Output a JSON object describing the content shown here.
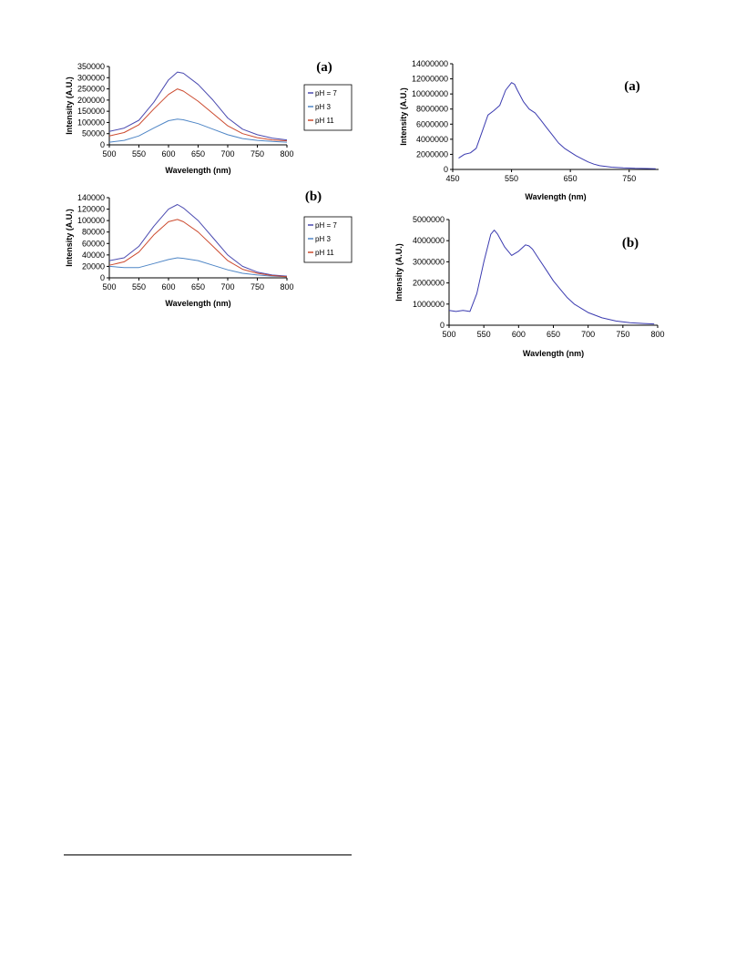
{
  "chart_data": [
    {
      "type": "line",
      "panel_label": "(a)",
      "xlabel": "Wavelength (nm)",
      "ylabel": "Intensity (A.U.)",
      "xlim": [
        500,
        800
      ],
      "ylim": [
        0,
        350000
      ],
      "xticks": [
        "500",
        "550",
        "600",
        "650",
        "700",
        "750",
        "800"
      ],
      "yticks": [
        "0",
        "50000",
        "100000",
        "150000",
        "200000",
        "250000",
        "300000",
        "350000"
      ],
      "legend_position": "right",
      "x": [
        500,
        525,
        550,
        575,
        600,
        615,
        625,
        650,
        675,
        700,
        725,
        750,
        775,
        800
      ],
      "series": [
        {
          "name": "pH = 7",
          "color": "#4a4ab0",
          "values": [
            60000,
            75000,
            110000,
            190000,
            290000,
            325000,
            320000,
            270000,
            200000,
            120000,
            70000,
            45000,
            30000,
            22000
          ]
        },
        {
          "name": "pH 3",
          "color": "#4f86c6",
          "values": [
            12000,
            20000,
            40000,
            75000,
            108000,
            115000,
            112000,
            95000,
            70000,
            45000,
            28000,
            20000,
            15000,
            12000
          ]
        },
        {
          "name": "pH 11",
          "color": "#cc4a2e",
          "values": [
            40000,
            55000,
            90000,
            160000,
            225000,
            250000,
            240000,
            195000,
            140000,
            85000,
            50000,
            32000,
            22000,
            18000
          ]
        }
      ]
    },
    {
      "type": "line",
      "panel_label": "(b)",
      "xlabel": "Wavelength (nm)",
      "ylabel": "Intensity (A.U.)",
      "xlim": [
        500,
        800
      ],
      "ylim": [
        0,
        140000
      ],
      "xticks": [
        "500",
        "550",
        "600",
        "650",
        "700",
        "750",
        "800"
      ],
      "yticks": [
        "0",
        "20000",
        "40000",
        "60000",
        "80000",
        "100000",
        "120000",
        "140000"
      ],
      "legend_position": "right",
      "x": [
        500,
        525,
        550,
        575,
        600,
        615,
        625,
        650,
        675,
        700,
        725,
        750,
        775,
        800
      ],
      "series": [
        {
          "name": "pH = 7",
          "color": "#4a4ab0",
          "values": [
            30000,
            35000,
            55000,
            90000,
            120000,
            128000,
            122000,
            100000,
            70000,
            40000,
            20000,
            10000,
            5000,
            3000
          ]
        },
        {
          "name": "pH 3",
          "color": "#4f86c6",
          "values": [
            20000,
            18000,
            18000,
            25000,
            32000,
            35000,
            34000,
            30000,
            22000,
            14000,
            8000,
            5000,
            3000,
            2000
          ]
        },
        {
          "name": "pH 11",
          "color": "#cc4a2e",
          "values": [
            22000,
            28000,
            45000,
            75000,
            98000,
            102000,
            98000,
            80000,
            55000,
            30000,
            15000,
            8000,
            4000,
            2000
          ]
        }
      ]
    },
    {
      "type": "line",
      "panel_label": "(a)",
      "xlabel": "Wavlength (nm)",
      "ylabel": "Intensity (A.U.)",
      "xlim": [
        450,
        800
      ],
      "ylim": [
        0,
        14000000
      ],
      "xticks": [
        "450",
        "550",
        "650",
        "750"
      ],
      "xtick_values": [
        450,
        550,
        650,
        750
      ],
      "yticks": [
        "0",
        "2000000",
        "4000000",
        "6000000",
        "8000000",
        "10000000",
        "12000000",
        "14000000"
      ],
      "x": [
        460,
        470,
        480,
        490,
        500,
        510,
        520,
        530,
        540,
        550,
        555,
        560,
        570,
        580,
        590,
        600,
        610,
        620,
        630,
        640,
        650,
        660,
        670,
        680,
        690,
        700,
        720,
        740,
        760,
        780,
        795
      ],
      "series": [
        {
          "name": "",
          "color": "#3b3bb0",
          "values": [
            1500000,
            2000000,
            2200000,
            2800000,
            5000000,
            7200000,
            7800000,
            8500000,
            10500000,
            11500000,
            11300000,
            10500000,
            9000000,
            8000000,
            7500000,
            6500000,
            5500000,
            4500000,
            3500000,
            2800000,
            2300000,
            1800000,
            1400000,
            1000000,
            700000,
            500000,
            300000,
            200000,
            150000,
            120000,
            100000
          ]
        }
      ]
    },
    {
      "type": "line",
      "panel_label": "(b)",
      "xlabel": "Wavlength (nm)",
      "ylabel": "Intensity (A.U.)",
      "xlim": [
        500,
        800
      ],
      "ylim": [
        0,
        5000000
      ],
      "xticks": [
        "500",
        "550",
        "600",
        "650",
        "700",
        "750",
        "800"
      ],
      "yticks": [
        "0",
        "1000000",
        "2000000",
        "3000000",
        "4000000",
        "5000000"
      ],
      "x": [
        500,
        510,
        520,
        530,
        540,
        550,
        560,
        565,
        570,
        580,
        590,
        600,
        610,
        615,
        620,
        630,
        640,
        650,
        660,
        670,
        680,
        690,
        700,
        720,
        740,
        760,
        780,
        795
      ],
      "series": [
        {
          "name": "",
          "color": "#3b3bb0",
          "values": [
            700000,
            650000,
            700000,
            650000,
            1500000,
            3000000,
            4300000,
            4500000,
            4300000,
            3700000,
            3300000,
            3500000,
            3800000,
            3750000,
            3600000,
            3100000,
            2600000,
            2100000,
            1700000,
            1300000,
            1000000,
            800000,
            600000,
            350000,
            200000,
            120000,
            80000,
            60000
          ]
        }
      ]
    }
  ]
}
